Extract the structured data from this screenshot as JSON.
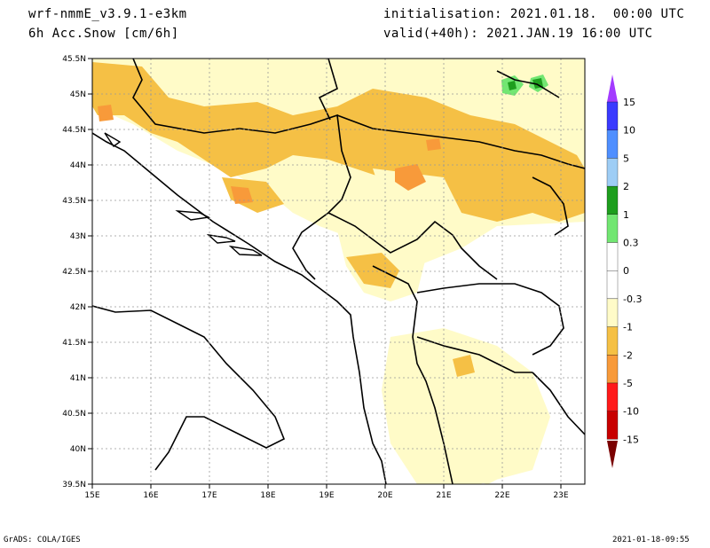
{
  "header": {
    "model": "wrf-nmmE_v3.9.1-e3km",
    "field": "6h Acc.Snow [cm/6h]",
    "init": "initialisation: 2021.01.18.  00:00 UTC",
    "valid": "valid(+40h): 2021.JAN.19 16:00 UTC"
  },
  "map": {
    "lon_ticks": [
      "15E",
      "16E",
      "17E",
      "18E",
      "19E",
      "20E",
      "21E",
      "22E",
      "23E"
    ],
    "lat_ticks": [
      "39.5N",
      "40N",
      "40.5N",
      "41N",
      "41.5N",
      "42N",
      "42.5N",
      "43N",
      "43.5N",
      "44N",
      "44.5N",
      "45N",
      "45.5N"
    ]
  },
  "legend": {
    "labels": [
      "15",
      "10",
      "5",
      "2",
      "1",
      "0.3",
      "0",
      "-0.3",
      "-1",
      "-2",
      "-5",
      "-10",
      "-15"
    ],
    "colors": [
      "#3a3aff",
      "#4f8fff",
      "#9ecdf5",
      "#1e9e1e",
      "#72e672",
      "#ffffff",
      "#ffffff",
      "#fffbc8",
      "#f5c045",
      "#f89a3a",
      "#ff1a1a",
      "#c80000",
      "#a00000"
    ],
    "top_arrow_color": "#a33bff",
    "bottom_arrow_color": "#7a0000"
  },
  "footer": {
    "left": "GrADS: COLA/IGES",
    "right": "2021-01-18-09:55"
  }
}
